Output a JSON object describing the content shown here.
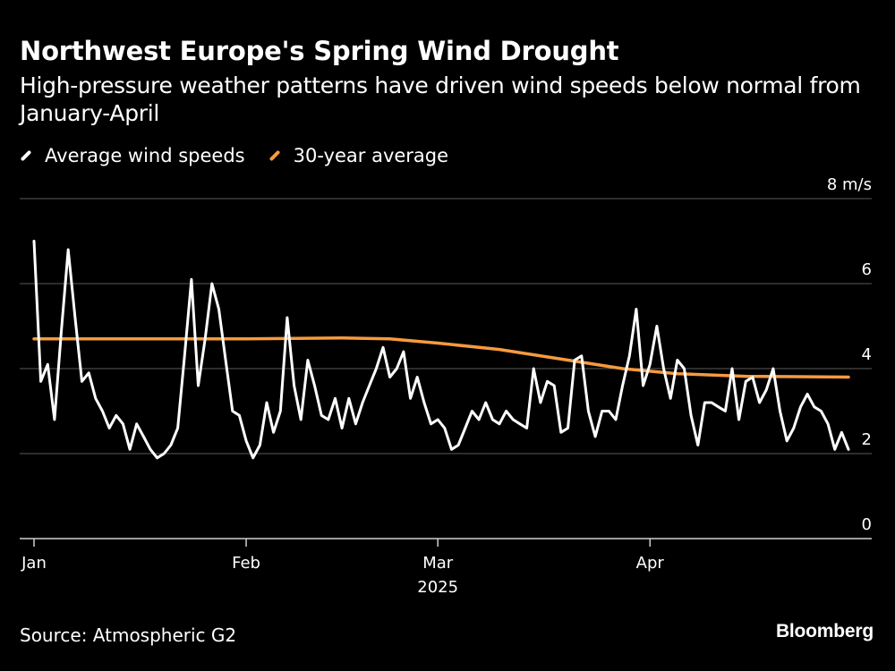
{
  "header": {
    "title": "Northwest Europe's Spring Wind Drought",
    "subtitle": "High-pressure weather patterns have driven wind speeds below normal from January-April"
  },
  "legend": [
    {
      "label": "Average wind speeds",
      "color": "#ffffff"
    },
    {
      "label": "30-year average",
      "color": "#f79a3e"
    }
  ],
  "footer": {
    "source": "Source: Atmospheric G2",
    "brand": "Bloomberg"
  },
  "chart_data": {
    "type": "line",
    "x_type": "date",
    "xlim": [
      "2025-01-01",
      "2025-04-30"
    ],
    "ylim": [
      0,
      8
    ],
    "y_unit": "m/s",
    "y_ticks": [
      {
        "value": 8,
        "label": "8 m/s"
      },
      {
        "value": 6,
        "label": "6"
      },
      {
        "value": 4,
        "label": "4"
      },
      {
        "value": 2,
        "label": "2"
      },
      {
        "value": 0,
        "label": "0"
      }
    ],
    "x_ticks": [
      {
        "date": "2025-01-01",
        "label": "Jan"
      },
      {
        "date": "2025-02-01",
        "label": "Feb"
      },
      {
        "date": "2025-03-01",
        "label": "Mar"
      },
      {
        "date": "2025-04-01",
        "label": "Apr"
      }
    ],
    "x_sublabel": "2025",
    "grid": true,
    "legend_position": "top-left",
    "series": [
      {
        "name": "Average wind speeds",
        "color": "#ffffff",
        "points": [
          [
            "2025-01-01",
            7.0
          ],
          [
            "2025-01-02",
            3.7
          ],
          [
            "2025-01-03",
            4.1
          ],
          [
            "2025-01-04",
            2.8
          ],
          [
            "2025-01-05",
            4.9
          ],
          [
            "2025-01-06",
            6.8
          ],
          [
            "2025-01-07",
            5.2
          ],
          [
            "2025-01-08",
            3.7
          ],
          [
            "2025-01-09",
            3.9
          ],
          [
            "2025-01-10",
            3.3
          ],
          [
            "2025-01-11",
            3.0
          ],
          [
            "2025-01-12",
            2.6
          ],
          [
            "2025-01-13",
            2.9
          ],
          [
            "2025-01-14",
            2.7
          ],
          [
            "2025-01-15",
            2.1
          ],
          [
            "2025-01-16",
            2.7
          ],
          [
            "2025-01-17",
            2.4
          ],
          [
            "2025-01-18",
            2.1
          ],
          [
            "2025-01-19",
            1.9
          ],
          [
            "2025-01-20",
            2.0
          ],
          [
            "2025-01-21",
            2.2
          ],
          [
            "2025-01-22",
            2.6
          ],
          [
            "2025-01-23",
            4.3
          ],
          [
            "2025-01-24",
            6.1
          ],
          [
            "2025-01-25",
            3.6
          ],
          [
            "2025-01-26",
            4.7
          ],
          [
            "2025-01-27",
            6.0
          ],
          [
            "2025-01-28",
            5.4
          ],
          [
            "2025-01-29",
            4.2
          ],
          [
            "2025-01-30",
            3.0
          ],
          [
            "2025-01-31",
            2.9
          ],
          [
            "2025-02-01",
            2.3
          ],
          [
            "2025-02-02",
            1.9
          ],
          [
            "2025-02-03",
            2.2
          ],
          [
            "2025-02-04",
            3.2
          ],
          [
            "2025-02-05",
            2.5
          ],
          [
            "2025-02-06",
            3.0
          ],
          [
            "2025-02-07",
            5.2
          ],
          [
            "2025-02-08",
            3.6
          ],
          [
            "2025-02-09",
            2.8
          ],
          [
            "2025-02-10",
            4.2
          ],
          [
            "2025-02-11",
            3.6
          ],
          [
            "2025-02-12",
            2.9
          ],
          [
            "2025-02-13",
            2.8
          ],
          [
            "2025-02-14",
            3.3
          ],
          [
            "2025-02-15",
            2.6
          ],
          [
            "2025-02-16",
            3.3
          ],
          [
            "2025-02-17",
            2.7
          ],
          [
            "2025-02-18",
            3.2
          ],
          [
            "2025-02-19",
            3.6
          ],
          [
            "2025-02-20",
            4.0
          ],
          [
            "2025-02-21",
            4.5
          ],
          [
            "2025-02-22",
            3.8
          ],
          [
            "2025-02-23",
            4.0
          ],
          [
            "2025-02-24",
            4.4
          ],
          [
            "2025-02-25",
            3.3
          ],
          [
            "2025-02-26",
            3.8
          ],
          [
            "2025-02-27",
            3.2
          ],
          [
            "2025-02-28",
            2.7
          ],
          [
            "2025-03-01",
            2.8
          ],
          [
            "2025-03-02",
            2.6
          ],
          [
            "2025-03-03",
            2.1
          ],
          [
            "2025-03-04",
            2.2
          ],
          [
            "2025-03-05",
            2.6
          ],
          [
            "2025-03-06",
            3.0
          ],
          [
            "2025-03-07",
            2.8
          ],
          [
            "2025-03-08",
            3.2
          ],
          [
            "2025-03-09",
            2.8
          ],
          [
            "2025-03-10",
            2.7
          ],
          [
            "2025-03-11",
            3.0
          ],
          [
            "2025-03-12",
            2.8
          ],
          [
            "2025-03-13",
            2.7
          ],
          [
            "2025-03-14",
            2.6
          ],
          [
            "2025-03-15",
            4.0
          ],
          [
            "2025-03-16",
            3.2
          ],
          [
            "2025-03-17",
            3.7
          ],
          [
            "2025-03-18",
            3.6
          ],
          [
            "2025-03-19",
            2.5
          ],
          [
            "2025-03-20",
            2.6
          ],
          [
            "2025-03-21",
            4.2
          ],
          [
            "2025-03-22",
            4.3
          ],
          [
            "2025-03-23",
            3.0
          ],
          [
            "2025-03-24",
            2.4
          ],
          [
            "2025-03-25",
            3.0
          ],
          [
            "2025-03-26",
            3.0
          ],
          [
            "2025-03-27",
            2.8
          ],
          [
            "2025-03-28",
            3.6
          ],
          [
            "2025-03-29",
            4.3
          ],
          [
            "2025-03-30",
            5.4
          ],
          [
            "2025-03-31",
            3.6
          ],
          [
            "2025-04-01",
            4.1
          ],
          [
            "2025-04-02",
            5.0
          ],
          [
            "2025-04-03",
            4.0
          ],
          [
            "2025-04-04",
            3.3
          ],
          [
            "2025-04-05",
            4.2
          ],
          [
            "2025-04-06",
            4.0
          ],
          [
            "2025-04-07",
            2.9
          ],
          [
            "2025-04-08",
            2.2
          ],
          [
            "2025-04-09",
            3.2
          ],
          [
            "2025-04-10",
            3.2
          ],
          [
            "2025-04-11",
            3.1
          ],
          [
            "2025-04-12",
            3.0
          ],
          [
            "2025-04-13",
            4.0
          ],
          [
            "2025-04-14",
            2.8
          ],
          [
            "2025-04-15",
            3.7
          ],
          [
            "2025-04-16",
            3.8
          ],
          [
            "2025-04-17",
            3.2
          ],
          [
            "2025-04-18",
            3.5
          ],
          [
            "2025-04-19",
            4.0
          ],
          [
            "2025-04-20",
            3.0
          ],
          [
            "2025-04-21",
            2.3
          ],
          [
            "2025-04-22",
            2.6
          ],
          [
            "2025-04-23",
            3.1
          ],
          [
            "2025-04-24",
            3.4
          ],
          [
            "2025-04-25",
            3.1
          ],
          [
            "2025-04-26",
            3.0
          ],
          [
            "2025-04-27",
            2.7
          ],
          [
            "2025-04-28",
            2.1
          ],
          [
            "2025-04-29",
            2.5
          ],
          [
            "2025-04-30",
            2.1
          ]
        ]
      },
      {
        "name": "30-year average",
        "color": "#f79a3e",
        "points": [
          [
            "2025-01-01",
            4.7
          ],
          [
            "2025-01-15",
            4.7
          ],
          [
            "2025-02-01",
            4.7
          ],
          [
            "2025-02-15",
            4.72
          ],
          [
            "2025-02-22",
            4.7
          ],
          [
            "2025-03-01",
            4.6
          ],
          [
            "2025-03-10",
            4.45
          ],
          [
            "2025-03-20",
            4.2
          ],
          [
            "2025-03-28",
            4.0
          ],
          [
            "2025-04-05",
            3.88
          ],
          [
            "2025-04-15",
            3.82
          ],
          [
            "2025-04-30",
            3.8
          ]
        ]
      }
    ]
  }
}
